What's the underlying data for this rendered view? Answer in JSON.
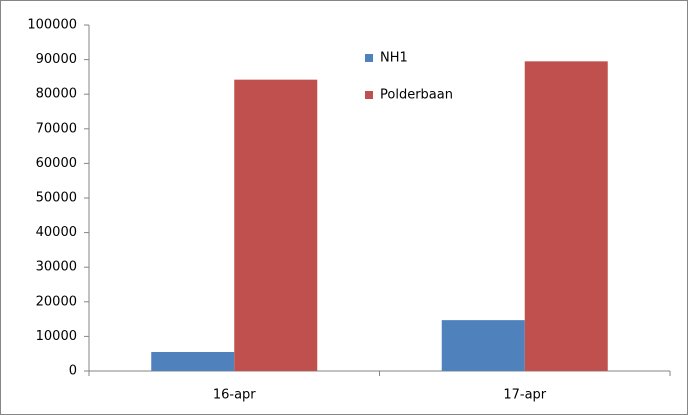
{
  "chart_data": {
    "type": "bar",
    "categories": [
      "16-apr",
      "17-apr"
    ],
    "series": [
      {
        "name": "NH1",
        "color": "#4f81bd",
        "values": [
          5500,
          14700
        ]
      },
      {
        "name": "Polderbaan",
        "color": "#c0504d",
        "values": [
          84200,
          89500
        ]
      }
    ],
    "ylim": [
      0,
      100000
    ],
    "yticks": [
      0,
      10000,
      20000,
      30000,
      40000,
      50000,
      60000,
      70000,
      80000,
      90000,
      100000
    ],
    "grid": false
  }
}
